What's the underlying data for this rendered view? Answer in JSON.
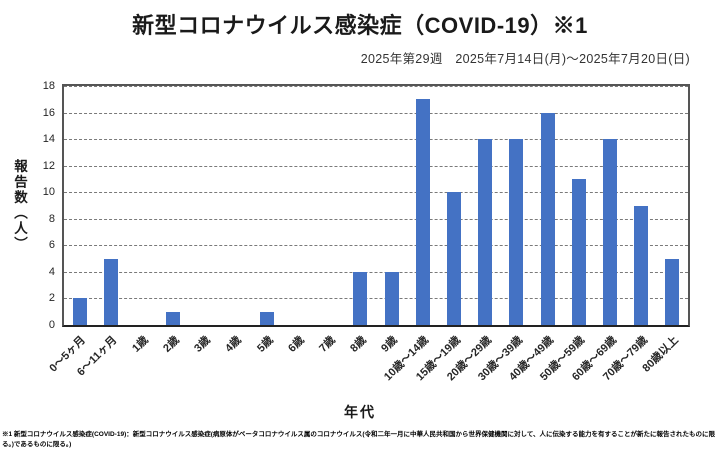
{
  "title": "新型コロナウイルス感染症（COVID-19）※1",
  "subtitle": "2025年第29週　2025年7月14日(月)～2025年7月20日(日)",
  "chart_data": {
    "type": "bar",
    "categories": [
      "0～5ヶ月",
      "6～11ヶ月",
      "1歳",
      "2歳",
      "3歳",
      "4歳",
      "5歳",
      "6歳",
      "7歳",
      "8歳",
      "9歳",
      "10歳～14歳",
      "15歳～19歳",
      "20歳～29歳",
      "30歳～39歳",
      "40歳～49歳",
      "50歳～59歳",
      "60歳～69歳",
      "70歳～79歳",
      "80歳以上"
    ],
    "values": [
      2,
      5,
      0,
      1,
      0,
      0,
      1,
      0,
      0,
      4,
      4,
      17,
      10,
      14,
      14,
      16,
      11,
      14,
      9,
      5
    ],
    "title": "新型コロナウイルス感染症（COVID-19）※1",
    "xlabel": "年代",
    "ylabel": "報告数（人）",
    "ylim": [
      0,
      18
    ],
    "ytick_step": 2,
    "bar_color": "#4472C4",
    "grid": true,
    "gridline_style": "dashed",
    "legend": "none"
  },
  "footnote": "※1 新型コロナウイルス感染症(COVID-19)：新型コロナウイルス感染症(病原体がベータコロナウイルス属のコロナウイルス(令和二年一月に中華人民共和国から世界保健機関に対して、人に伝染する能力を有することが新たに報告されたものに限る。)であるものに限る。)"
}
